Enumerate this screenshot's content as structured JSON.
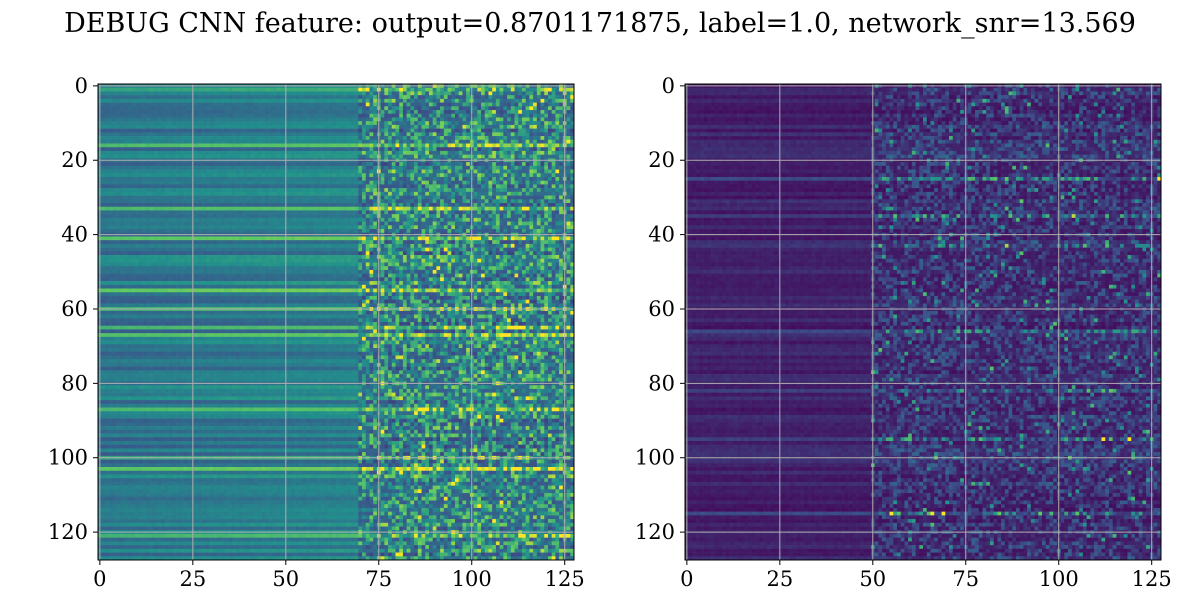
{
  "title": "DEBUG CNN feature: output=0.8701171875, label=1.0, network_snr=13.569",
  "chart_data": [
    {
      "type": "heatmap",
      "colormap": "viridis",
      "rows": 128,
      "cols": 128,
      "xlim": [
        0,
        127
      ],
      "ylim": [
        127,
        0
      ],
      "xticks": [
        0,
        25,
        50,
        75,
        100,
        125
      ],
      "yticks": [
        0,
        20,
        40,
        60,
        80,
        100,
        120
      ],
      "grid": true,
      "description_of_values": "horizontal banded structure; smooth mid-intensity columns 0-70, noisy high-variance columns 75-127",
      "value_range": [
        0,
        1
      ],
      "smooth_region_end_col": 70,
      "noisy_region_start_col": 75,
      "noisy_intensity": 0.55,
      "bright_rows": [
        1,
        16,
        33,
        41,
        55,
        60,
        65,
        67,
        87,
        100,
        103,
        121
      ],
      "palette": [
        "#440154",
        "#3b528b",
        "#21918c",
        "#5ec962",
        "#fde725"
      ]
    },
    {
      "type": "heatmap",
      "colormap": "viridis",
      "rows": 128,
      "cols": 128,
      "xlim": [
        0,
        127
      ],
      "ylim": [
        127,
        0
      ],
      "xticks": [
        0,
        25,
        50,
        75,
        100,
        125
      ],
      "yticks": [
        0,
        20,
        40,
        60,
        80,
        100,
        120
      ],
      "grid": true,
      "description_of_values": "mostly low values; uniform dark columns 0-50, sparse noisy brighter pixels columns 50-127",
      "value_range": [
        0,
        1
      ],
      "smooth_region_end_col": 50,
      "noisy_region_start_col": 50,
      "noisy_intensity": 0.25,
      "bright_rows": [
        25,
        35,
        43,
        66,
        82,
        95,
        115
      ],
      "palette": [
        "#440154",
        "#3b528b",
        "#21918c",
        "#5ec962",
        "#fde725"
      ]
    }
  ]
}
